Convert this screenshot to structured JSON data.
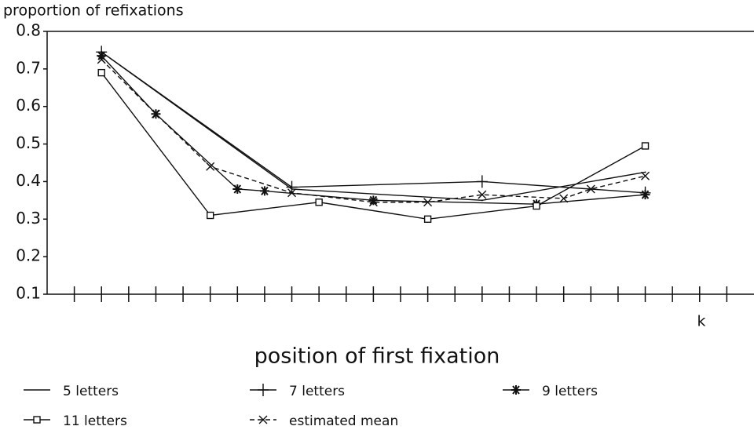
{
  "chart_data": {
    "type": "line",
    "y_label": "proportion of refixations",
    "x_label": "position of first fixation",
    "x_annotation": "k",
    "xlim": [
      0,
      26
    ],
    "xticks": [
      1,
      2,
      3,
      4,
      5,
      6,
      7,
      8,
      9,
      10,
      11,
      12,
      13,
      14,
      15,
      16,
      17,
      18,
      19,
      20,
      21,
      22,
      23,
      24,
      25
    ],
    "ylim": [
      0.1,
      0.8
    ],
    "yticks": [
      0.1,
      0.2,
      0.3,
      0.4,
      0.5,
      0.6,
      0.7,
      0.8
    ],
    "series": [
      {
        "name": "5 letters",
        "color": "#111111",
        "marker": "none",
        "dash": false,
        "x": [
          2,
          9,
          16,
          22
        ],
        "values": [
          0.745,
          0.38,
          0.35,
          0.425
        ]
      },
      {
        "name": "7 letters",
        "color": "#111111",
        "marker": "plus",
        "dash": false,
        "x": [
          2,
          9,
          16,
          22
        ],
        "values": [
          0.745,
          0.385,
          0.4,
          0.37
        ]
      },
      {
        "name": "9 letters",
        "color": "#111111",
        "marker": "star",
        "dash": false,
        "x": [
          2,
          4,
          7,
          8,
          12,
          18,
          22
        ],
        "values": [
          0.735,
          0.58,
          0.38,
          0.375,
          0.35,
          0.34,
          0.365
        ]
      },
      {
        "name": "11 letters",
        "color": "#111111",
        "marker": "square",
        "dash": false,
        "x": [
          2,
          6,
          10,
          14,
          18,
          22
        ],
        "values": [
          0.69,
          0.31,
          0.345,
          0.3,
          0.335,
          0.495
        ]
      },
      {
        "name": "estimated mean",
        "color": "#111111",
        "marker": "cross",
        "dash": true,
        "x": [
          2,
          4,
          6,
          9,
          12,
          14,
          16,
          19,
          20,
          22
        ],
        "values": [
          0.725,
          0.58,
          0.44,
          0.37,
          0.345,
          0.345,
          0.365,
          0.355,
          0.38,
          0.415
        ]
      }
    ]
  }
}
